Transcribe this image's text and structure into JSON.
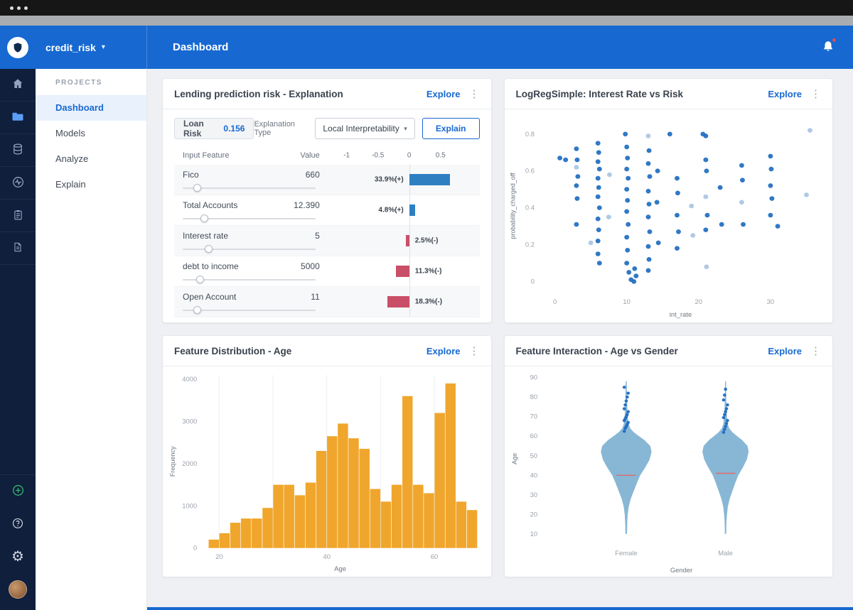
{
  "header": {
    "project_name": "credit_risk",
    "page_title": "Dashboard"
  },
  "projects_nav": {
    "section": "PROJECTS",
    "items": [
      {
        "label": "Dashboard",
        "active": true
      },
      {
        "label": "Models",
        "active": false
      },
      {
        "label": "Analyze",
        "active": false
      },
      {
        "label": "Explain",
        "active": false
      }
    ]
  },
  "rail": {
    "top_icons": [
      "home-icon",
      "folder-icon",
      "database-icon",
      "monitor-icon",
      "clipboard-icon",
      "report-icon"
    ],
    "bottom_icons": [
      "add-circle-icon",
      "help-circle-icon",
      "gear-icon",
      "user-avatar"
    ]
  },
  "cards": {
    "explanation": {
      "title": "Lending prediction risk - Explanation",
      "explore": "Explore",
      "chip_label": "Loan Risk",
      "chip_value": "0.156",
      "type_label": "Explanation Type",
      "type_value": "Local Interpretability",
      "explain_button": "Explain",
      "col_feature": "Input Feature",
      "col_value": "Value"
    },
    "scatter": {
      "title": "LogRegSimple: Interest Rate vs Risk",
      "explore": "Explore"
    },
    "histogram": {
      "title": "Feature Distribution - Age",
      "explore": "Explore"
    },
    "violin": {
      "title": "Feature Interaction - Age vs Gender",
      "explore": "Explore"
    }
  },
  "colors": {
    "accent": "#1769d1",
    "positive_bar": "#2e7fc2",
    "negative_bar": "#c94f68",
    "hist_bar": "#f0a62c",
    "violin_fill": "#7aafd0",
    "scatter_dark": "#1f6cc0",
    "scatter_light": "#a9c6e3",
    "median_line": "#e06a6a"
  },
  "chart_data": [
    {
      "id": "feature_impact",
      "type": "bar",
      "orientation": "horizontal",
      "title": "Lending prediction risk - Explanation",
      "axis_range": [
        -1,
        0.5
      ],
      "axis_ticks": [
        "-1",
        "-0.5",
        "0",
        "0.5"
      ],
      "rows": [
        {
          "feature": "Fico",
          "value": "660",
          "impact_pct": 33.9,
          "sign": "+",
          "label": "33.9%(+)",
          "slider_pos": 0.08
        },
        {
          "feature": "Total Accounts",
          "value": "12.390",
          "impact_pct": 4.8,
          "sign": "+",
          "label": "4.8%(+)",
          "slider_pos": 0.13
        },
        {
          "feature": "Interest rate",
          "value": "5",
          "impact_pct": 2.5,
          "sign": "-",
          "label": "2.5%(-)",
          "slider_pos": 0.16
        },
        {
          "feature": "debt to income",
          "value": "5000",
          "impact_pct": 11.3,
          "sign": "-",
          "label": "11.3%(-)",
          "slider_pos": 0.1
        },
        {
          "feature": "Open Account",
          "value": "11",
          "impact_pct": 18.3,
          "sign": "-",
          "label": "18.3%(-)",
          "slider_pos": 0.08
        }
      ]
    },
    {
      "id": "risk_scatter",
      "type": "scatter",
      "title": "LogRegSimple: Interest Rate vs Risk",
      "xlabel": "int_rate",
      "ylabel": "probability_charged_off",
      "xlim": [
        -2,
        37
      ],
      "ylim": [
        -0.06,
        0.88
      ],
      "xticks": [
        0,
        10,
        20,
        30
      ],
      "yticks": [
        0,
        0.2,
        0.4,
        0.6,
        0.8
      ],
      "points": [
        [
          0.7,
          0.67,
          0
        ],
        [
          1.5,
          0.66,
          0
        ],
        [
          3,
          0.72,
          0
        ],
        [
          3.1,
          0.66,
          0
        ],
        [
          3,
          0.62,
          1
        ],
        [
          3.2,
          0.57,
          0
        ],
        [
          3,
          0.52,
          0
        ],
        [
          3.1,
          0.45,
          0
        ],
        [
          3,
          0.31,
          0
        ],
        [
          5,
          0.21,
          1
        ],
        [
          6,
          0.75,
          0
        ],
        [
          6.1,
          0.7,
          0
        ],
        [
          6,
          0.65,
          0
        ],
        [
          6.2,
          0.61,
          0
        ],
        [
          6,
          0.56,
          0
        ],
        [
          6.1,
          0.51,
          0
        ],
        [
          6,
          0.46,
          0
        ],
        [
          6.2,
          0.4,
          0
        ],
        [
          6,
          0.34,
          0
        ],
        [
          6.1,
          0.28,
          0
        ],
        [
          6,
          0.22,
          0
        ],
        [
          6,
          0.15,
          0
        ],
        [
          6.2,
          0.1,
          0
        ],
        [
          7.6,
          0.58,
          1
        ],
        [
          7.5,
          0.35,
          1
        ],
        [
          9.8,
          0.8,
          0
        ],
        [
          10,
          0.73,
          0
        ],
        [
          10.1,
          0.67,
          0
        ],
        [
          10,
          0.61,
          0
        ],
        [
          10.2,
          0.56,
          0
        ],
        [
          10,
          0.5,
          0
        ],
        [
          10.1,
          0.44,
          0
        ],
        [
          10,
          0.38,
          0
        ],
        [
          10.2,
          0.31,
          0
        ],
        [
          10,
          0.24,
          0
        ],
        [
          10.1,
          0.17,
          0
        ],
        [
          10,
          0.1,
          0
        ],
        [
          10.3,
          0.05,
          0
        ],
        [
          10.6,
          0.01,
          0
        ],
        [
          11,
          0.0,
          0
        ],
        [
          11.3,
          0.03,
          0
        ],
        [
          11.1,
          0.07,
          0
        ],
        [
          13,
          0.79,
          1
        ],
        [
          13.1,
          0.71,
          0
        ],
        [
          13,
          0.64,
          0
        ],
        [
          13.2,
          0.57,
          0
        ],
        [
          13,
          0.49,
          0
        ],
        [
          13.1,
          0.42,
          0
        ],
        [
          13,
          0.35,
          0
        ],
        [
          13.2,
          0.27,
          0
        ],
        [
          13,
          0.19,
          0
        ],
        [
          13.1,
          0.12,
          0
        ],
        [
          13,
          0.06,
          0
        ],
        [
          14.3,
          0.6,
          0
        ],
        [
          14.2,
          0.43,
          0
        ],
        [
          14.4,
          0.21,
          0
        ],
        [
          16,
          0.8,
          0
        ],
        [
          17,
          0.56,
          0
        ],
        [
          17.1,
          0.48,
          0
        ],
        [
          17,
          0.36,
          0
        ],
        [
          17.2,
          0.27,
          0
        ],
        [
          17,
          0.18,
          0
        ],
        [
          19,
          0.41,
          1
        ],
        [
          19.2,
          0.25,
          1
        ],
        [
          20.6,
          0.8,
          0
        ],
        [
          21,
          0.79,
          0
        ],
        [
          21,
          0.66,
          0
        ],
        [
          21.1,
          0.6,
          0
        ],
        [
          21,
          0.46,
          1
        ],
        [
          21.2,
          0.36,
          0
        ],
        [
          21,
          0.28,
          0
        ],
        [
          21.1,
          0.08,
          1
        ],
        [
          23,
          0.51,
          0
        ],
        [
          23.2,
          0.31,
          0
        ],
        [
          26,
          0.63,
          0
        ],
        [
          26.1,
          0.55,
          0
        ],
        [
          26,
          0.43,
          1
        ],
        [
          26.2,
          0.31,
          0
        ],
        [
          30,
          0.68,
          0
        ],
        [
          30.1,
          0.61,
          0
        ],
        [
          30,
          0.52,
          0
        ],
        [
          30.2,
          0.45,
          0
        ],
        [
          30,
          0.36,
          0
        ],
        [
          31,
          0.3,
          0
        ],
        [
          35.5,
          0.82,
          1
        ],
        [
          35,
          0.47,
          1
        ]
      ]
    },
    {
      "id": "age_hist",
      "type": "histogram",
      "title": "Feature Distribution - Age",
      "xlabel": "Age",
      "ylabel": "Frequency",
      "bin_start": 18,
      "bin_width": 2,
      "counts": [
        200,
        350,
        600,
        700,
        700,
        950,
        1500,
        1500,
        1250,
        1550,
        2300,
        2650,
        2950,
        2600,
        2350,
        1400,
        1100,
        1500,
        3600,
        1500,
        1300,
        3200,
        3900,
        1100,
        900
      ],
      "xticks": [
        20,
        40,
        60
      ],
      "yticks": [
        0,
        1000,
        2000,
        3000,
        4000
      ],
      "ylim": [
        0,
        4100
      ]
    },
    {
      "id": "age_gender_violin",
      "type": "violin",
      "title": "Feature Interaction - Age vs Gender",
      "xlabel": "Gender",
      "ylabel": "Age",
      "categories": [
        "Female",
        "Male"
      ],
      "yticks": [
        10,
        20,
        30,
        40,
        50,
        60,
        70,
        80,
        90
      ],
      "ylim": [
        5,
        92
      ],
      "groups": [
        {
          "name": "Female",
          "median": 40,
          "profile": [
            [
              10,
              0.03
            ],
            [
              16,
              0.04
            ],
            [
              20,
              0.06
            ],
            [
              24,
              0.1
            ],
            [
              28,
              0.18
            ],
            [
              32,
              0.3
            ],
            [
              36,
              0.42
            ],
            [
              40,
              0.55
            ],
            [
              44,
              0.75
            ],
            [
              48,
              0.92
            ],
            [
              52,
              1.0
            ],
            [
              55,
              0.95
            ],
            [
              58,
              0.72
            ],
            [
              60,
              0.5
            ],
            [
              62,
              0.3
            ],
            [
              64,
              0.16
            ],
            [
              66,
              0.1
            ],
            [
              70,
              0.06
            ],
            [
              75,
              0.04
            ],
            [
              80,
              0.03
            ],
            [
              85,
              0.025
            ],
            [
              88,
              0.02
            ]
          ],
          "outlier_ages": [
            62.5,
            64,
            65,
            66,
            67,
            68,
            69,
            70,
            71,
            72.5,
            74,
            76,
            78,
            80,
            82,
            85
          ]
        },
        {
          "name": "Male",
          "median": 41,
          "profile": [
            [
              10,
              0.03
            ],
            [
              16,
              0.04
            ],
            [
              20,
              0.06
            ],
            [
              24,
              0.1
            ],
            [
              28,
              0.18
            ],
            [
              32,
              0.3
            ],
            [
              36,
              0.42
            ],
            [
              40,
              0.55
            ],
            [
              44,
              0.75
            ],
            [
              48,
              0.92
            ],
            [
              52,
              1.0
            ],
            [
              55,
              0.95
            ],
            [
              58,
              0.72
            ],
            [
              60,
              0.5
            ],
            [
              62,
              0.3
            ],
            [
              64,
              0.16
            ],
            [
              66,
              0.1
            ],
            [
              70,
              0.06
            ],
            [
              75,
              0.04
            ],
            [
              80,
              0.03
            ],
            [
              85,
              0.025
            ],
            [
              88,
              0.02
            ]
          ],
          "outlier_ages": [
            62,
            63.5,
            65,
            66.5,
            68,
            69.5,
            71,
            72.5,
            74,
            76,
            78.5,
            81,
            84
          ]
        }
      ]
    }
  ]
}
